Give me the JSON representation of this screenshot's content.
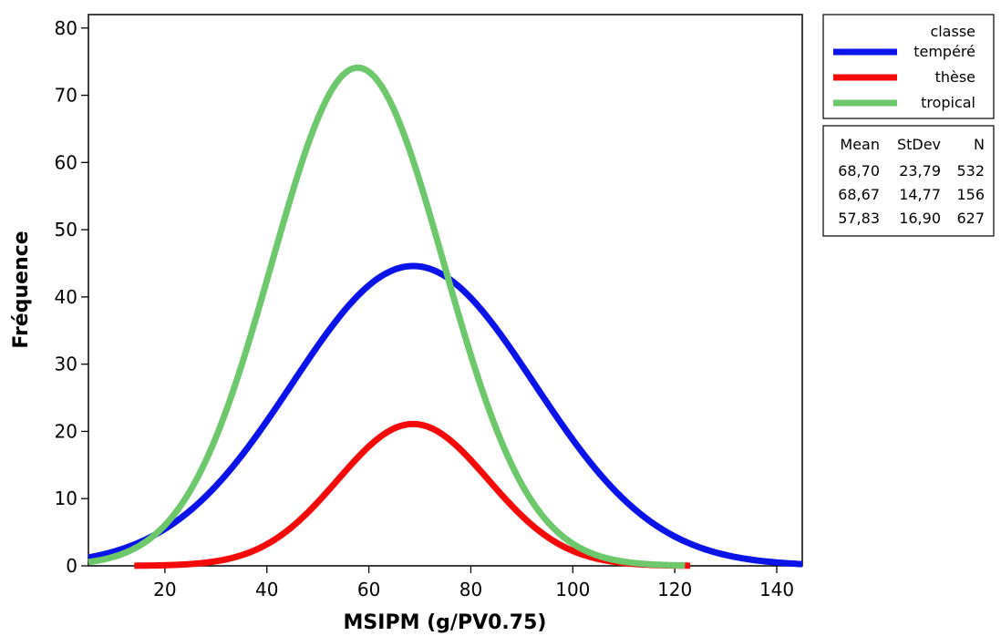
{
  "chart_data": {
    "type": "line",
    "title": "",
    "xlabel": "MSIPM (g/PV0.75)",
    "ylabel": "Fréquence",
    "xlim": [
      5,
      145
    ],
    "ylim": [
      0,
      82
    ],
    "xticks": [
      20,
      40,
      60,
      80,
      100,
      120,
      140
    ],
    "yticks": [
      0,
      10,
      20,
      30,
      40,
      50,
      60,
      70,
      80
    ],
    "grid": false,
    "legend_position": "right",
    "legend_title": "classe",
    "series": [
      {
        "name": "tempéré",
        "color": "#0a14e8",
        "mean": 68.7,
        "stdev": 23.79,
        "n": 532,
        "peak": 44.6,
        "x_range": [
          5,
          145
        ],
        "x": [
          5,
          20,
          30,
          40,
          50,
          60,
          69,
          80,
          90,
          100,
          110,
          120,
          130,
          145
        ],
        "values": [
          1.3,
          5,
          12,
          22,
          33,
          40.5,
          44.6,
          41.5,
          32.5,
          19.5,
          11,
          4.5,
          1.7,
          0.3
        ]
      },
      {
        "name": "thèse",
        "color": "#f50a0a",
        "mean": 68.67,
        "stdev": 14.77,
        "n": 156,
        "peak": 21.1,
        "x_range": [
          14,
          123
        ],
        "x": [
          14,
          20,
          30,
          40,
          50,
          60,
          69,
          80,
          90,
          100,
          110,
          123
        ],
        "values": [
          0.2,
          0.2,
          0.7,
          3,
          10.5,
          17.5,
          21.1,
          16,
          7.5,
          2.5,
          0.7,
          0.3
        ]
      },
      {
        "name": "tropical",
        "color": "#6cc86a",
        "mean": 57.83,
        "stdev": 16.9,
        "n": 627,
        "peak": 74.1,
        "x_range": [
          5,
          122
        ],
        "x": [
          5,
          15,
          20,
          30,
          40,
          50,
          58,
          65,
          70,
          80,
          90,
          100,
          110,
          122
        ],
        "values": [
          0.8,
          3,
          6.5,
          20,
          44,
          65,
          74.1,
          70,
          62,
          36,
          12,
          3,
          0.8,
          0.3
        ]
      }
    ],
    "stats_table": {
      "headers": [
        "Mean",
        "StDev",
        "N"
      ],
      "rows": [
        [
          "68,70",
          "23,79",
          "532"
        ],
        [
          "68,67",
          "14,77",
          "156"
        ],
        [
          "57,83",
          "16,90",
          "627"
        ]
      ]
    }
  }
}
